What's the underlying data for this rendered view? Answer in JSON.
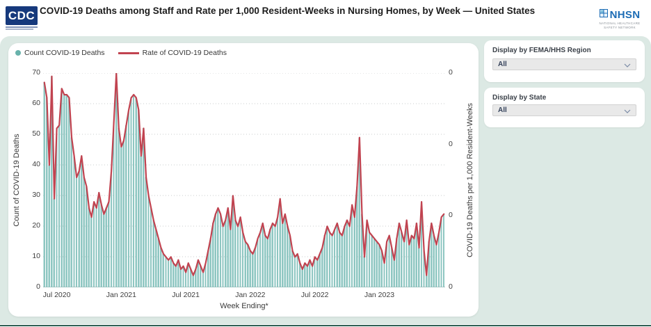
{
  "header": {
    "title": "COVID-19 Deaths among Staff and Rate per 1,000 Resident-Weeks in Nursing Homes, by Week — United States",
    "cdc_logo_text": "CDC",
    "nhsn_logo": {
      "name": "NHSN",
      "subtitle_line1": "NATIONAL HEALTHCARE",
      "subtitle_line2": "SAFETY NETWORK"
    }
  },
  "filters": {
    "region": {
      "label": "Display by FEMA/HHS Region",
      "value": "All"
    },
    "state": {
      "label": "Display by State",
      "value": "All"
    }
  },
  "chart_data": {
    "type": "bar",
    "title": "",
    "xlabel": "Week Ending*",
    "ylabel_left": "Count of COVID-19 Deaths",
    "ylabel_right": "COVID-19 Deaths per 1,000 Resident-Weeks",
    "ylim_left": [
      0,
      70
    ],
    "yticks_left": [
      0,
      10,
      20,
      30,
      40,
      50,
      60,
      70
    ],
    "yticks_right_labels": [
      "0",
      "0",
      "0",
      "0"
    ],
    "grid": "dotted horizontal",
    "legend_position": "top-left",
    "legend": [
      {
        "label": "Count COVID-19 Deaths",
        "type": "dot",
        "color": "#68b2ab"
      },
      {
        "label": "Rate of COVID-19 Deaths",
        "type": "line",
        "color": "#c14350"
      }
    ],
    "x_tick_labels": [
      "Jul 2020",
      "Jan 2021",
      "Jul 2021",
      "Jan 2022",
      "Jul 2022",
      "Jan 2023"
    ],
    "x_tick_indices": [
      5,
      31,
      57,
      83,
      109,
      135
    ],
    "x_description": "weekly bars from late May 2020 through mid 2023",
    "series": [
      {
        "name": "Count COVID-19 Deaths",
        "type": "bar",
        "color": "#8dc6c1",
        "values": [
          67,
          62,
          40,
          69,
          29,
          52,
          53,
          65,
          63,
          63,
          62,
          49,
          43,
          36,
          38,
          43,
          36,
          33,
          26,
          23,
          28,
          26,
          31,
          27,
          24,
          26,
          28,
          38,
          54,
          70,
          52,
          46,
          48,
          53,
          58,
          62,
          63,
          62,
          58,
          43,
          52,
          36,
          30,
          26,
          22,
          19,
          16,
          13,
          11,
          10,
          9,
          10,
          8,
          7,
          9,
          6,
          7,
          5,
          8,
          6,
          4,
          6,
          9,
          7,
          5,
          8,
          12,
          16,
          21,
          24,
          26,
          24,
          20,
          22,
          26,
          19,
          30,
          22,
          20,
          23,
          18,
          15,
          14,
          12,
          11,
          13,
          16,
          18,
          21,
          17,
          16,
          19,
          21,
          20,
          23,
          29,
          21,
          24,
          20,
          17,
          12,
          10,
          11,
          8,
          6,
          8,
          7,
          9,
          7,
          10,
          9,
          11,
          13,
          17,
          20,
          18,
          17,
          19,
          21,
          18,
          17,
          20,
          22,
          20,
          27,
          23,
          33,
          49,
          24,
          10,
          22,
          18,
          17,
          16,
          15,
          14,
          12,
          8,
          15,
          17,
          13,
          9,
          16,
          21,
          18,
          15,
          22,
          14,
          17,
          16,
          21,
          13,
          28,
          12,
          4,
          15,
          21,
          17,
          14,
          18,
          23,
          24
        ]
      },
      {
        "name": "Rate of COVID-19 Deaths",
        "type": "line",
        "color": "#c14350",
        "values_note": "rate line visually overlays the count bars; right axis tick labels all display 0"
      }
    ]
  },
  "colors": {
    "bar_fill": "#8dc6c1",
    "rate_line": "#c14350",
    "panel_background": "#dce9e4",
    "bottom_divider": "#2f5f53",
    "cdc_blue": "#16397c",
    "nhsn_blue": "#1c6cb5",
    "gridline": "#c9cdce"
  }
}
